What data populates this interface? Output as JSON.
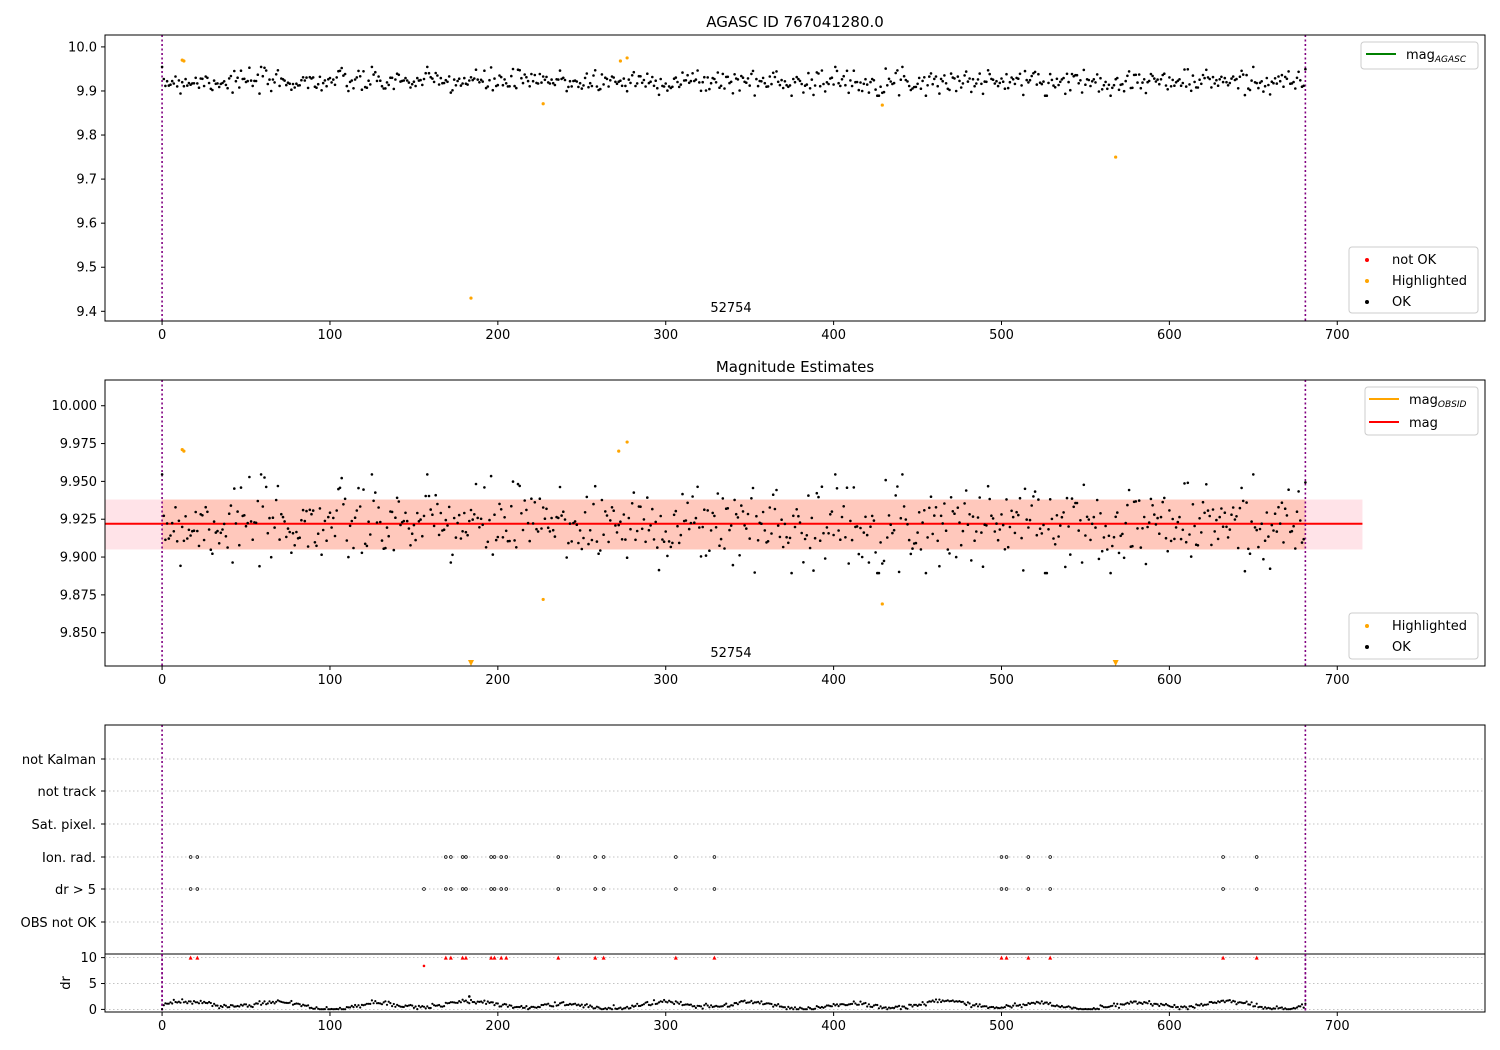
{
  "figure": {
    "colors": {
      "ok": "#000000",
      "highlighted": "#ffa500",
      "not_ok": "#ff0000",
      "mag_agasc": "#008000",
      "mag_obsid": "#ffa500",
      "mag": "#ff0000",
      "obs_boundary": "#800080",
      "band_outer": "#ffc0cb",
      "band_inner": "#ffa07a"
    }
  },
  "chart_data": [
    {
      "type": "scatter",
      "title": "AGASC ID 767041280.0",
      "xlim": [
        -34,
        788
      ],
      "ylim": [
        9.378,
        10.027
      ],
      "x_ticks": [
        "0",
        "100",
        "200",
        "300",
        "400",
        "500",
        "600",
        "700"
      ],
      "y_ticks": [
        "10.0",
        "9.9",
        "9.8",
        "9.7",
        "9.6",
        "9.5",
        "9.4"
      ],
      "obs_boundaries": [
        0,
        681
      ],
      "obsid_label": "52754",
      "ok_band": {
        "center": 9.922,
        "noise": 0.016,
        "x_range": [
          0,
          681
        ]
      },
      "highlighted_points": [
        [
          12,
          9.97
        ],
        [
          13,
          9.968
        ],
        [
          227,
          9.871
        ],
        [
          273,
          9.968
        ],
        [
          277,
          9.975
        ],
        [
          429,
          9.868
        ],
        [
          568,
          9.75
        ],
        [
          184,
          9.43
        ]
      ],
      "legend_lines": [
        {
          "label": "mag",
          "sub": "AGASC",
          "color": "#008000"
        }
      ],
      "legend_points": [
        {
          "label": "not OK",
          "color": "#ff0000"
        },
        {
          "label": "Highlighted",
          "color": "#ffa500"
        },
        {
          "label": "OK",
          "color": "#000000"
        }
      ]
    },
    {
      "type": "scatter",
      "title": "Magnitude Estimates",
      "xlim": [
        -34,
        788
      ],
      "ylim": [
        9.828,
        10.017
      ],
      "x_ticks": [
        "0",
        "100",
        "200",
        "300",
        "400",
        "500",
        "600",
        "700"
      ],
      "y_ticks": [
        "10.000",
        "9.975",
        "9.950",
        "9.925",
        "9.900",
        "9.875",
        "9.850"
      ],
      "obs_boundaries": [
        0,
        681
      ],
      "obsid_label": "52754",
      "mag": 9.922,
      "mag_band": [
        9.905,
        9.938
      ],
      "mag_band_xlim": [
        -34,
        715
      ],
      "obsid_band_xlim": [
        0,
        681
      ],
      "ok_band": {
        "center": 9.922,
        "noise": 0.016,
        "x_range": [
          0,
          681
        ]
      },
      "highlighted_points": [
        [
          12,
          9.971
        ],
        [
          13,
          9.97
        ],
        [
          227,
          9.872
        ],
        [
          272,
          9.97
        ],
        [
          277,
          9.976
        ],
        [
          429,
          9.869
        ]
      ],
      "clipped_points": [
        184,
        568
      ],
      "legend_lines": [
        {
          "label": "mag",
          "sub": "OBSID",
          "color": "#ffa500"
        },
        {
          "label": "mag",
          "sub": "",
          "color": "#ff0000"
        }
      ],
      "legend_points": [
        {
          "label": "Highlighted",
          "color": "#ffa500"
        },
        {
          "label": "OK",
          "color": "#000000"
        }
      ]
    },
    {
      "type": "scatter",
      "title": "",
      "xlim": [
        -34,
        788
      ],
      "x_ticks": [
        "0",
        "100",
        "200",
        "300",
        "400",
        "500",
        "600",
        "700"
      ],
      "obs_boundaries": [
        0,
        681
      ],
      "flag_rows": [
        "not Kalman",
        "not track",
        "Sat. pixel.",
        "Ion. rad.",
        "dr > 5",
        "OBS not OK"
      ],
      "ion_rad_x": [
        17,
        21,
        169,
        172,
        179,
        181,
        196,
        198,
        202,
        205,
        236,
        258,
        263,
        306,
        329,
        500,
        503,
        516,
        529,
        632,
        652
      ],
      "dr5_x": [
        17,
        21,
        156,
        169,
        172,
        179,
        181,
        196,
        198,
        202,
        205,
        236,
        258,
        263,
        306,
        329,
        500,
        503,
        516,
        529,
        632,
        652
      ]
    },
    {
      "type": "scatter",
      "title": "",
      "ylabel": "dr",
      "ylim": [
        -0.5,
        10.7
      ],
      "xlim": [
        -34,
        788
      ],
      "x_ticks": [
        "0",
        "100",
        "200",
        "300",
        "400",
        "500",
        "600",
        "700"
      ],
      "y_ticks": [
        "10",
        "5",
        "0"
      ],
      "obs_boundaries": [
        0,
        681
      ],
      "clipped_x": [
        17,
        21,
        169,
        172,
        179,
        181,
        196,
        198,
        202,
        205,
        236,
        258,
        263,
        306,
        329,
        500,
        503,
        516,
        529,
        632,
        652
      ],
      "outlier_points": [
        [
          156,
          8.4
        ],
        [
          183,
          2.5
        ]
      ]
    }
  ]
}
